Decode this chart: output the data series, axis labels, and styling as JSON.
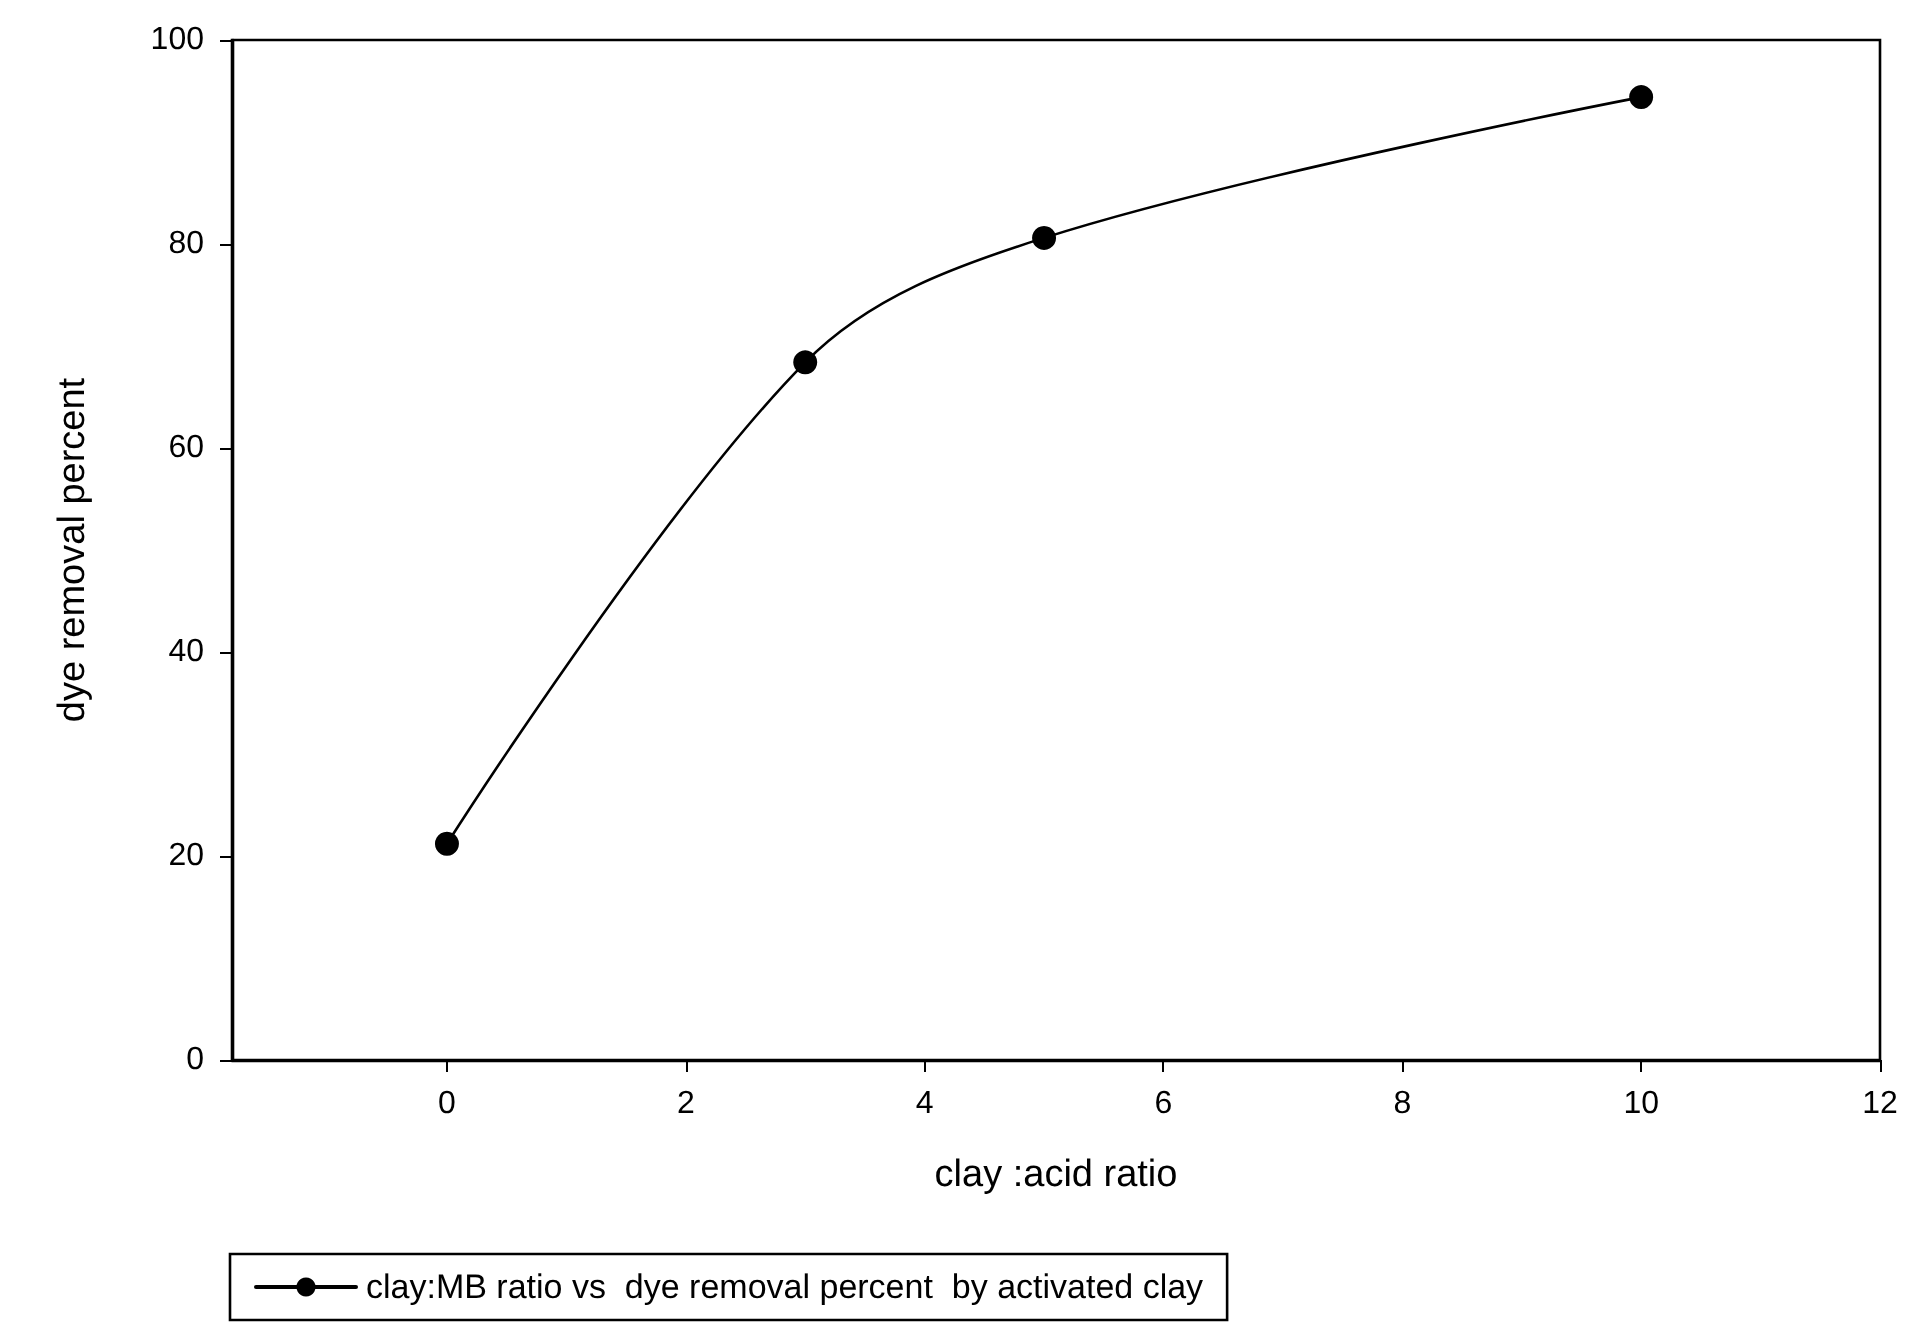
{
  "chart_data": {
    "type": "line",
    "xlabel": "clay :acid ratio",
    "ylabel": "dye removal percent",
    "x": [
      0,
      3,
      5,
      10
    ],
    "series": [
      {
        "name": "clay:MB ratio vs  dye removal percent  by activated clay",
        "color": "#000000",
        "values": [
          21.2,
          68.4,
          80.6,
          94.4
        ]
      }
    ],
    "xlim": [
      -1.8,
      12
    ],
    "xticks": [
      0,
      2,
      4,
      6,
      8,
      10,
      12
    ],
    "ylim": [
      0,
      100
    ],
    "yticks": [
      0,
      20,
      40,
      60,
      80,
      100
    ],
    "grid": false,
    "legend": "bottom left",
    "marker": "circle",
    "line_style": "solid"
  }
}
